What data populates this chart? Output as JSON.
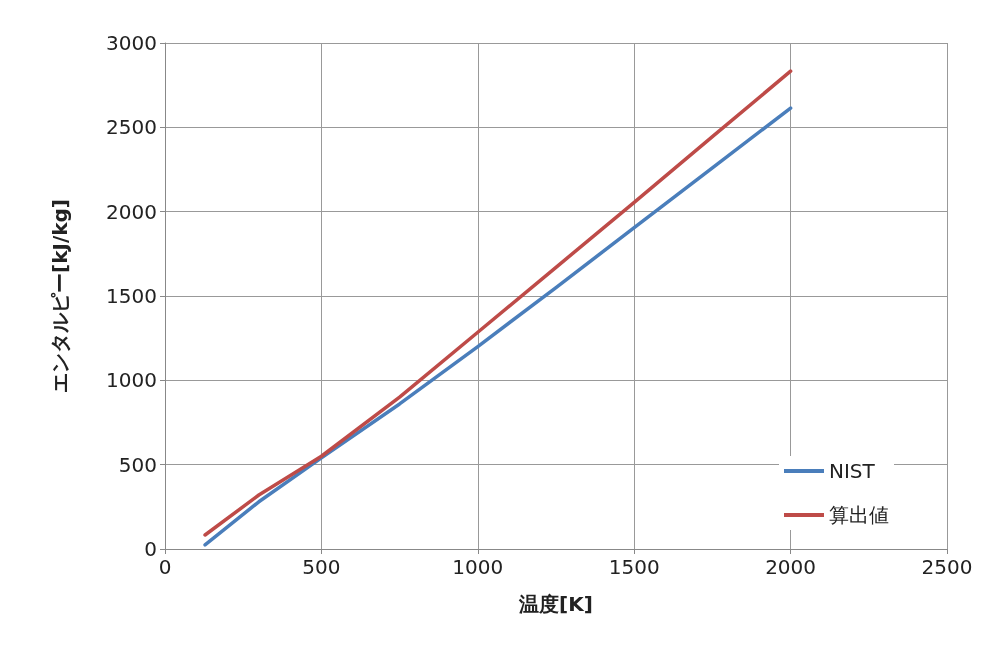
{
  "chart_data": {
    "type": "line",
    "xlabel": "温度[K]",
    "ylabel": "エンタルピー[kJ/kg]",
    "xlim": [
      0,
      2500
    ],
    "xticks": [
      0,
      500,
      1000,
      1500,
      2000,
      2500
    ],
    "ylim": [
      0,
      3000
    ],
    "yticks": [
      0,
      500,
      1000,
      1500,
      2000,
      2500,
      3000
    ],
    "grid": true,
    "legend": "bottom right",
    "marker": "none",
    "line_style": "solid",
    "series": [
      {
        "name": "NIST",
        "color": "#4a7ebb",
        "x": [
          128,
          300,
          500,
          750,
          1000,
          1250,
          1500,
          1750,
          2000
        ],
        "values": [
          25,
          280,
          540,
          860,
          1200,
          1550,
          1905,
          2260,
          2614
        ]
      },
      {
        "name": "算出値",
        "color": "#be4b48",
        "x": [
          128,
          300,
          500,
          750,
          1000,
          1250,
          1500,
          1750,
          2000
        ],
        "values": [
          83,
          320,
          550,
          900,
          1285,
          1670,
          2055,
          2445,
          2833
        ]
      }
    ]
  }
}
